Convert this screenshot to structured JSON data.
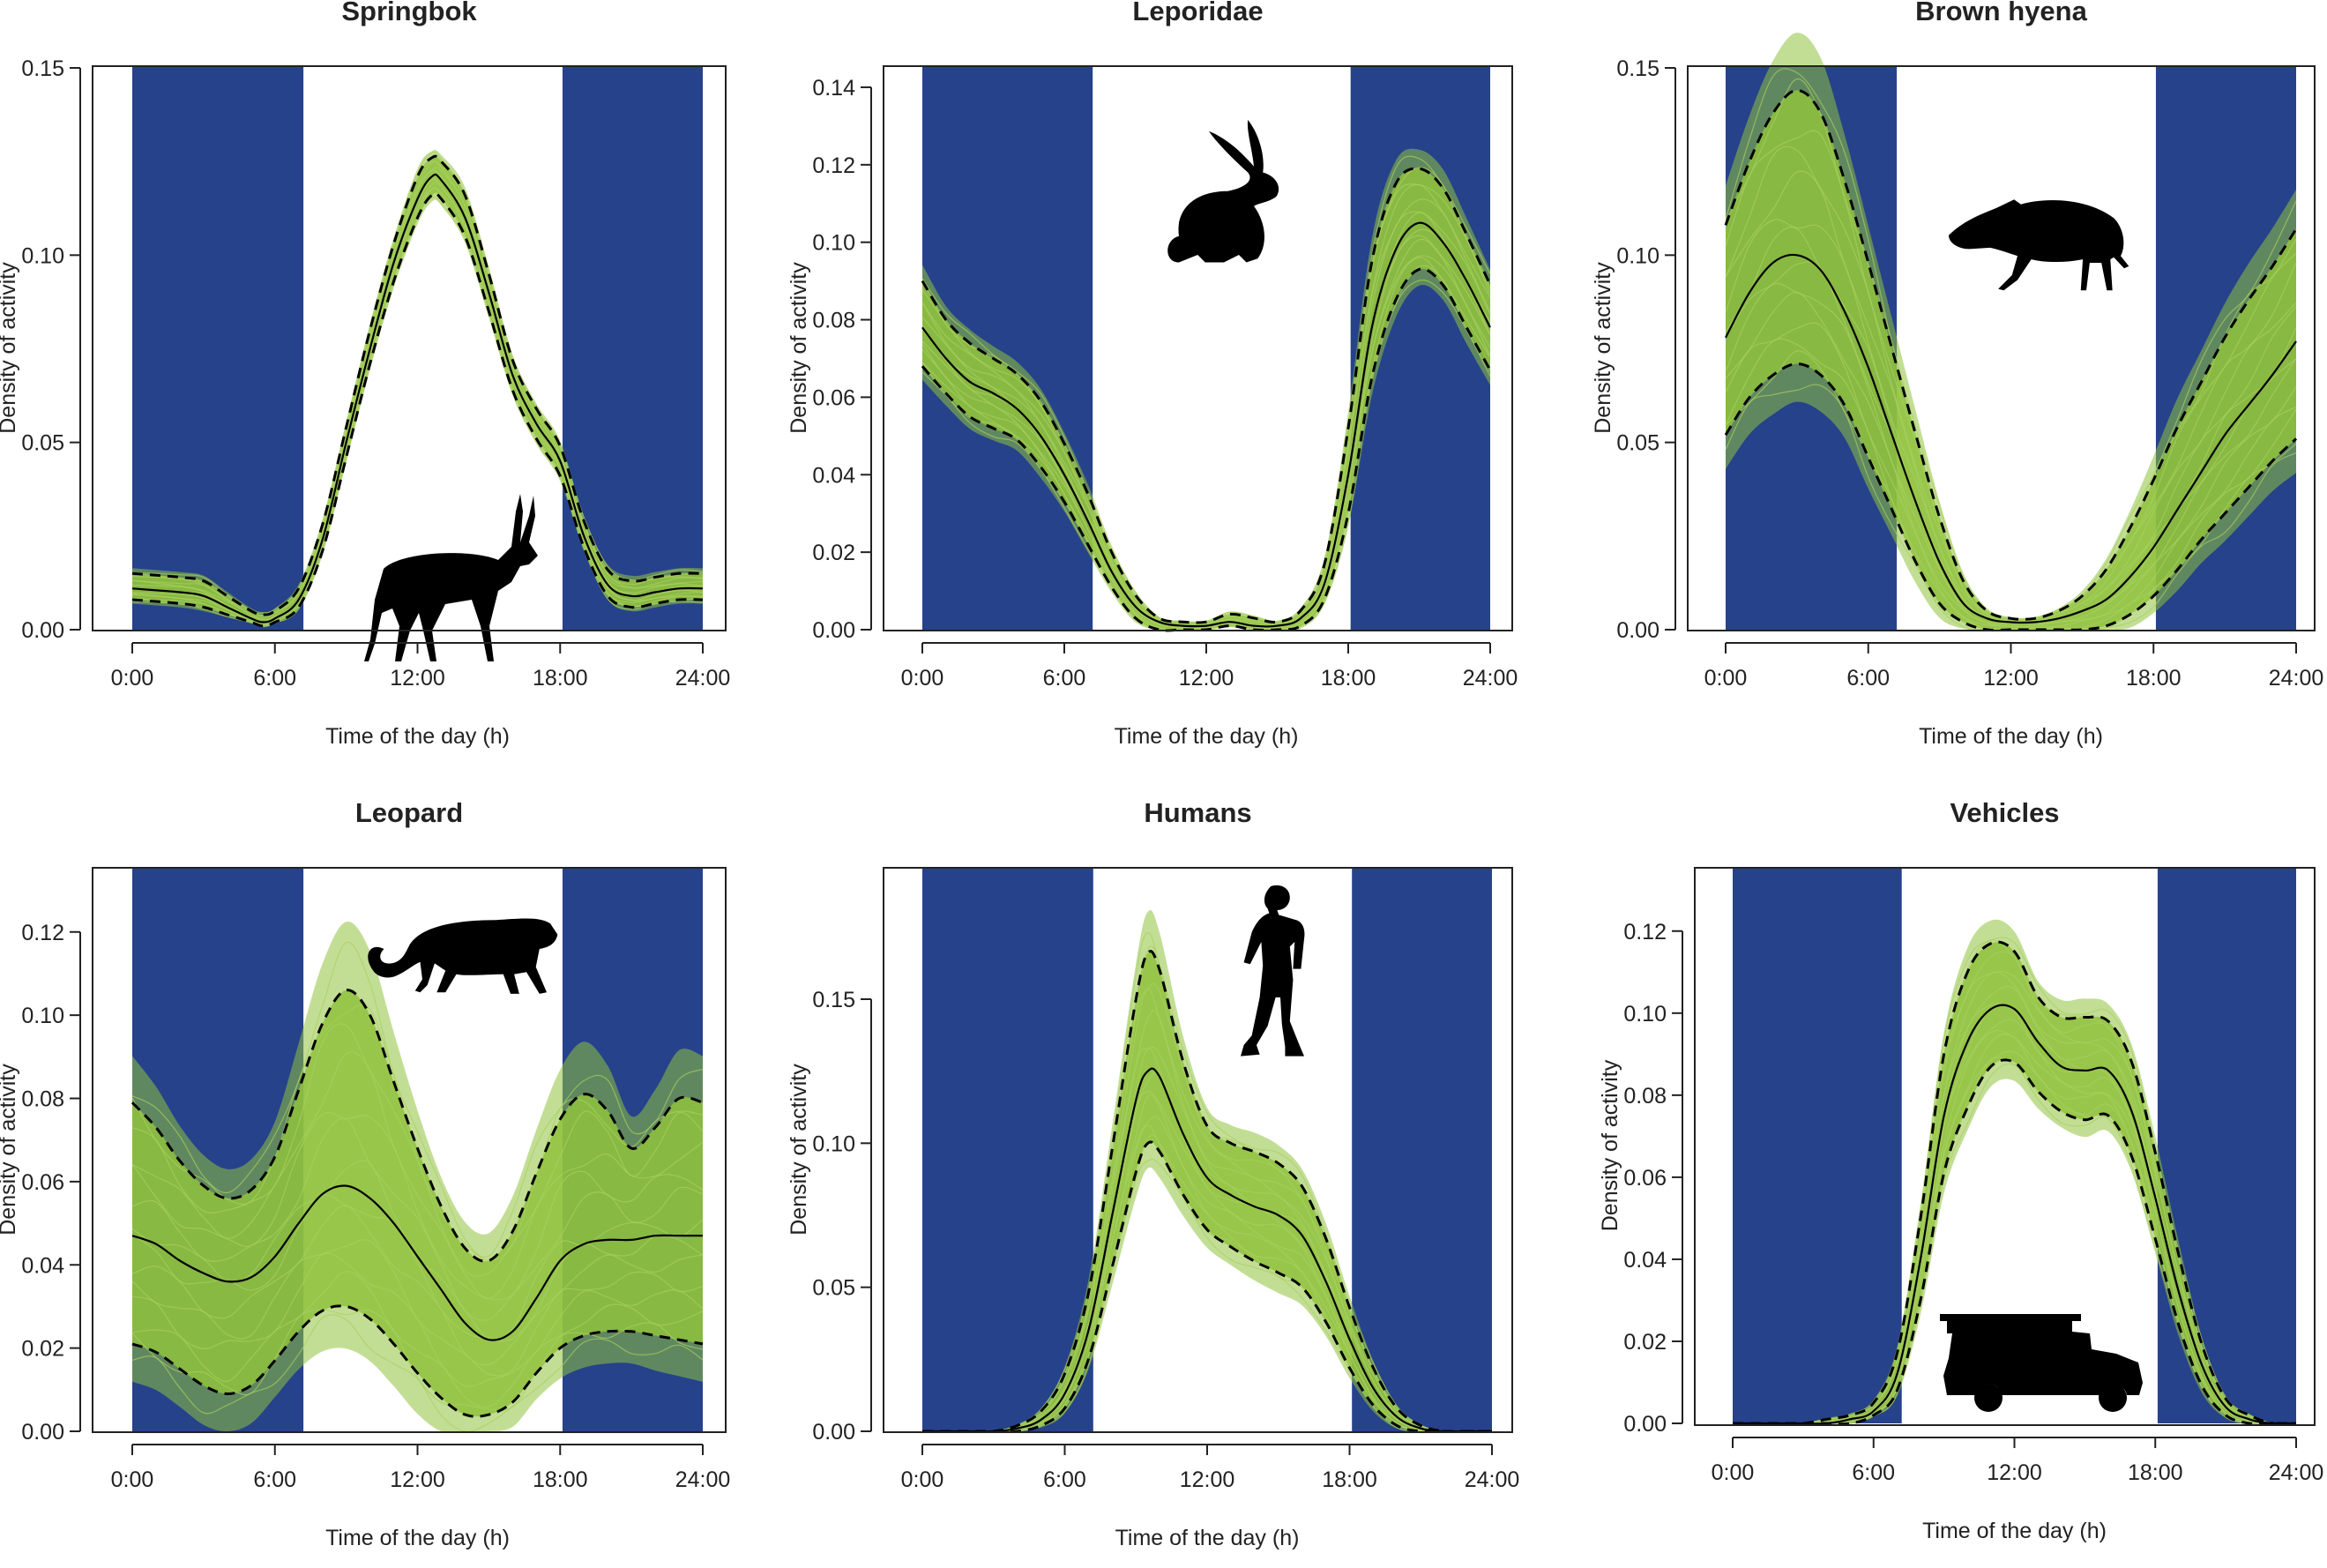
{
  "chart_data": [
    {
      "type": "line",
      "title": "Springbok",
      "xlabel": "Time of the day (h)",
      "ylabel": "Density of activity",
      "xlim": [
        0,
        24
      ],
      "ylim": [
        0,
        0.15
      ],
      "xticks": [
        "0:00",
        "6:00",
        "12:00",
        "18:00",
        "24:00"
      ],
      "yticks": [
        "0.00",
        "0.05",
        "0.10",
        "0.15"
      ],
      "night_shading": [
        [
          0,
          7.2
        ],
        [
          18.1,
          24
        ]
      ],
      "silhouette": "springbok-icon",
      "x": [
        0,
        2,
        3,
        4,
        5,
        5.5,
        6,
        7,
        8,
        9,
        10,
        11,
        12,
        12.6,
        13,
        14,
        15,
        16,
        17,
        18,
        19,
        20,
        21,
        22,
        23,
        24
      ],
      "series": [
        {
          "name": "mean",
          "values": [
            0.011,
            0.01,
            0.009,
            0.006,
            0.003,
            0.002,
            0.003,
            0.008,
            0.024,
            0.05,
            0.075,
            0.098,
            0.115,
            0.121,
            0.12,
            0.11,
            0.09,
            0.068,
            0.055,
            0.045,
            0.025,
            0.012,
            0.009,
            0.01,
            0.011,
            0.011
          ]
        },
        {
          "name": "upper",
          "values": [
            0.015,
            0.014,
            0.013,
            0.009,
            0.005,
            0.004,
            0.005,
            0.011,
            0.028,
            0.054,
            0.08,
            0.103,
            0.121,
            0.126,
            0.125,
            0.116,
            0.095,
            0.072,
            0.059,
            0.049,
            0.029,
            0.016,
            0.013,
            0.014,
            0.015,
            0.015
          ]
        },
        {
          "name": "lower",
          "values": [
            0.008,
            0.007,
            0.006,
            0.004,
            0.002,
            0.001,
            0.002,
            0.006,
            0.021,
            0.046,
            0.071,
            0.093,
            0.11,
            0.116,
            0.115,
            0.105,
            0.085,
            0.064,
            0.051,
            0.041,
            0.022,
            0.009,
            0.006,
            0.007,
            0.008,
            0.008
          ]
        }
      ]
    },
    {
      "type": "line",
      "title": "Leporidae",
      "xlabel": "Time of the day (h)",
      "ylabel": "Density of activity",
      "xlim": [
        0,
        24
      ],
      "ylim": [
        0,
        0.145
      ],
      "xticks": [
        "0:00",
        "6:00",
        "12:00",
        "18:00",
        "24:00"
      ],
      "yticks": [
        "0.00",
        "0.02",
        "0.04",
        "0.06",
        "0.08",
        "0.10",
        "0.12",
        "0.14"
      ],
      "night_shading": [
        [
          0,
          7.2
        ],
        [
          18.1,
          24
        ]
      ],
      "silhouette": "rabbit-icon",
      "x": [
        0,
        1,
        2,
        3,
        4,
        5,
        6,
        7,
        8,
        9,
        10,
        11,
        12,
        13,
        14,
        15,
        16,
        17,
        18,
        19,
        20,
        21,
        22,
        23,
        24
      ],
      "series": [
        {
          "name": "mean",
          "values": [
            0.078,
            0.07,
            0.064,
            0.061,
            0.057,
            0.05,
            0.04,
            0.028,
            0.015,
            0.006,
            0.002,
            0.001,
            0.001,
            0.002,
            0.001,
            0.001,
            0.003,
            0.012,
            0.04,
            0.078,
            0.098,
            0.105,
            0.1,
            0.09,
            0.078
          ]
        },
        {
          "name": "upper",
          "values": [
            0.09,
            0.08,
            0.074,
            0.07,
            0.066,
            0.059,
            0.048,
            0.035,
            0.02,
            0.009,
            0.003,
            0.002,
            0.002,
            0.004,
            0.003,
            0.002,
            0.005,
            0.017,
            0.052,
            0.095,
            0.115,
            0.119,
            0.114,
            0.102,
            0.089
          ]
        },
        {
          "name": "lower",
          "values": [
            0.068,
            0.061,
            0.055,
            0.052,
            0.049,
            0.042,
            0.033,
            0.022,
            0.011,
            0.003,
            0.0,
            0.0,
            0.0,
            0.001,
            0.0,
            0.0,
            0.001,
            0.008,
            0.03,
            0.065,
            0.085,
            0.093,
            0.089,
            0.078,
            0.067
          ]
        }
      ]
    },
    {
      "type": "line",
      "title": "Brown hyena",
      "xlabel": "Time of the day (h)",
      "ylabel": "Density of activity",
      "xlim": [
        0,
        24
      ],
      "ylim": [
        0,
        0.15
      ],
      "xticks": [
        "0:00",
        "6:00",
        "12:00",
        "18:00",
        "24:00"
      ],
      "yticks": [
        "0.00",
        "0.05",
        "0.10",
        "0.15"
      ],
      "night_shading": [
        [
          0,
          7.2
        ],
        [
          18.1,
          24
        ]
      ],
      "silhouette": "hyena-icon",
      "x": [
        0,
        1,
        2,
        3,
        4,
        5,
        6,
        7,
        8,
        9,
        10,
        11,
        12,
        13,
        14,
        15,
        16,
        17,
        18,
        19,
        20,
        21,
        22,
        23,
        24
      ],
      "series": [
        {
          "name": "mean",
          "values": [
            0.078,
            0.09,
            0.098,
            0.1,
            0.096,
            0.085,
            0.07,
            0.052,
            0.034,
            0.018,
            0.007,
            0.003,
            0.002,
            0.002,
            0.003,
            0.005,
            0.008,
            0.014,
            0.022,
            0.032,
            0.042,
            0.052,
            0.06,
            0.068,
            0.077
          ]
        },
        {
          "name": "upper",
          "values": [
            0.108,
            0.125,
            0.138,
            0.144,
            0.138,
            0.12,
            0.098,
            0.075,
            0.052,
            0.03,
            0.013,
            0.005,
            0.003,
            0.003,
            0.005,
            0.009,
            0.016,
            0.027,
            0.04,
            0.054,
            0.066,
            0.078,
            0.088,
            0.097,
            0.107
          ]
        },
        {
          "name": "lower",
          "values": [
            0.052,
            0.062,
            0.068,
            0.071,
            0.068,
            0.06,
            0.046,
            0.032,
            0.018,
            0.007,
            0.002,
            0.0,
            0.0,
            0.0,
            0.0,
            0.0,
            0.001,
            0.004,
            0.009,
            0.016,
            0.024,
            0.031,
            0.038,
            0.045,
            0.051
          ]
        }
      ]
    },
    {
      "type": "line",
      "title": "Leopard",
      "xlabel": "Time of the day (h)",
      "ylabel": "Density of activity",
      "xlim": [
        0,
        24
      ],
      "ylim": [
        0,
        0.135
      ],
      "xticks": [
        "0:00",
        "6:00",
        "12:00",
        "18:00",
        "24:00"
      ],
      "yticks": [
        "0.00",
        "0.02",
        "0.04",
        "0.06",
        "0.08",
        "0.10",
        "0.12"
      ],
      "night_shading": [
        [
          0,
          7.2
        ],
        [
          18.1,
          24
        ]
      ],
      "silhouette": "leopard-icon",
      "x": [
        0,
        1,
        2,
        3,
        4,
        5,
        6,
        7,
        8,
        9,
        10,
        11,
        12,
        13,
        14,
        15,
        16,
        17,
        18,
        19,
        20,
        21,
        22,
        23,
        24
      ],
      "series": [
        {
          "name": "mean",
          "values": [
            0.047,
            0.045,
            0.041,
            0.038,
            0.036,
            0.037,
            0.042,
            0.05,
            0.057,
            0.059,
            0.056,
            0.05,
            0.042,
            0.034,
            0.026,
            0.022,
            0.024,
            0.032,
            0.041,
            0.045,
            0.046,
            0.046,
            0.047,
            0.047,
            0.047
          ]
        },
        {
          "name": "upper",
          "values": [
            0.079,
            0.073,
            0.065,
            0.059,
            0.056,
            0.058,
            0.066,
            0.082,
            0.098,
            0.106,
            0.1,
            0.084,
            0.068,
            0.054,
            0.044,
            0.041,
            0.048,
            0.062,
            0.075,
            0.081,
            0.077,
            0.068,
            0.073,
            0.08,
            0.079
          ]
        },
        {
          "name": "lower",
          "values": [
            0.021,
            0.019,
            0.015,
            0.011,
            0.009,
            0.011,
            0.017,
            0.024,
            0.029,
            0.03,
            0.027,
            0.021,
            0.014,
            0.008,
            0.004,
            0.004,
            0.007,
            0.014,
            0.02,
            0.023,
            0.024,
            0.024,
            0.023,
            0.022,
            0.021
          ]
        }
      ]
    },
    {
      "type": "line",
      "title": "Humans",
      "xlabel": "Time of the day (h)",
      "ylabel": "Density of activity",
      "xlim": [
        0,
        24
      ],
      "ylim": [
        0,
        0.195
      ],
      "xticks": [
        "0:00",
        "6:00",
        "12:00",
        "18:00",
        "24:00"
      ],
      "yticks": [
        "0.00",
        "0.05",
        "0.10",
        "0.15"
      ],
      "night_shading": [
        [
          0,
          7.2
        ],
        [
          18.1,
          24
        ]
      ],
      "silhouette": "hiker-icon",
      "x": [
        0,
        1,
        2,
        3,
        4,
        5,
        6,
        7,
        8,
        9,
        9.5,
        10,
        11,
        12,
        13,
        14,
        15,
        16,
        17,
        18,
        19,
        20,
        21,
        22,
        23,
        24
      ],
      "series": [
        {
          "name": "mean",
          "values": [
            0.0,
            0.0,
            0.0,
            0.0,
            0.001,
            0.004,
            0.013,
            0.035,
            0.075,
            0.115,
            0.125,
            0.123,
            0.103,
            0.088,
            0.082,
            0.078,
            0.075,
            0.068,
            0.052,
            0.032,
            0.015,
            0.005,
            0.001,
            0.0,
            0.0,
            0.0
          ]
        },
        {
          "name": "upper",
          "values": [
            0.0,
            0.0,
            0.0,
            0.0,
            0.002,
            0.007,
            0.02,
            0.048,
            0.098,
            0.15,
            0.166,
            0.16,
            0.128,
            0.106,
            0.1,
            0.097,
            0.093,
            0.085,
            0.067,
            0.043,
            0.022,
            0.008,
            0.002,
            0.0,
            0.0,
            0.0
          ]
        },
        {
          "name": "lower",
          "values": [
            0.0,
            0.0,
            0.0,
            0.0,
            0.0,
            0.002,
            0.008,
            0.025,
            0.057,
            0.09,
            0.1,
            0.097,
            0.082,
            0.07,
            0.064,
            0.059,
            0.055,
            0.05,
            0.038,
            0.022,
            0.009,
            0.002,
            0.0,
            0.0,
            0.0,
            0.0
          ]
        }
      ]
    },
    {
      "type": "line",
      "title": "Vehicles",
      "xlabel": "Time of the day (h)",
      "ylabel": "Density of activity",
      "xlim": [
        0,
        24
      ],
      "ylim": [
        0,
        0.135
      ],
      "xticks": [
        "0:00",
        "6:00",
        "12:00",
        "18:00",
        "24:00"
      ],
      "yticks": [
        "0.00",
        "0.02",
        "0.04",
        "0.06",
        "0.08",
        "0.10",
        "0.12"
      ],
      "night_shading": [
        [
          0,
          7.2
        ],
        [
          18.1,
          24
        ]
      ],
      "silhouette": "safari-vehicle-icon",
      "x": [
        0,
        1,
        2,
        3,
        4,
        5,
        6,
        7,
        8,
        9,
        10,
        11,
        12,
        13,
        14,
        15,
        16,
        17,
        18,
        19,
        20,
        21,
        22,
        23,
        24
      ],
      "series": [
        {
          "name": "mean",
          "values": [
            0.0,
            0.0,
            0.0,
            0.0,
            0.0,
            0.001,
            0.003,
            0.012,
            0.04,
            0.075,
            0.093,
            0.101,
            0.101,
            0.093,
            0.087,
            0.086,
            0.086,
            0.076,
            0.055,
            0.032,
            0.014,
            0.004,
            0.001,
            0.0,
            0.0
          ]
        },
        {
          "name": "upper",
          "values": [
            0.0,
            0.0,
            0.0,
            0.0,
            0.001,
            0.002,
            0.005,
            0.017,
            0.05,
            0.09,
            0.11,
            0.117,
            0.115,
            0.104,
            0.099,
            0.099,
            0.098,
            0.088,
            0.066,
            0.041,
            0.019,
            0.006,
            0.002,
            0.0,
            0.0
          ]
        },
        {
          "name": "lower",
          "values": [
            0.0,
            0.0,
            0.0,
            0.0,
            0.0,
            0.0,
            0.002,
            0.008,
            0.03,
            0.061,
            0.077,
            0.087,
            0.088,
            0.081,
            0.076,
            0.074,
            0.075,
            0.065,
            0.045,
            0.024,
            0.009,
            0.002,
            0.0,
            0.0,
            0.0
          ]
        }
      ]
    }
  ],
  "colors": {
    "night": "#26428b",
    "day": "#ffffff",
    "bootstrap": "#8fc23e",
    "line": "#000000"
  }
}
